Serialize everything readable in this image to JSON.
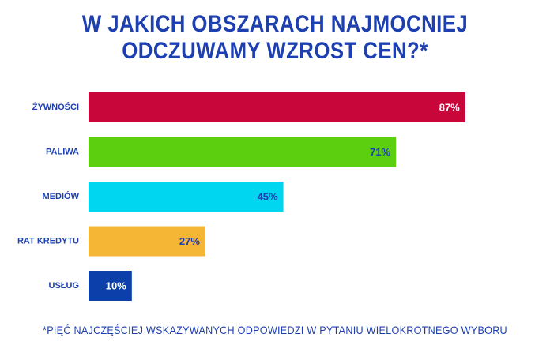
{
  "title_line1": "W JAKICH OBSZARACH NAJMOCNIEJ",
  "title_line2": "ODCZUWAMY WZROST CEN?*",
  "footnote": "*PIĘĆ NAJCZĘŚCIEJ WSKAZYWANYCH ODPOWIEDZI W PYTANIU WIELOKROTNEGO WYBORU",
  "colors": {
    "title": "#1d3fb0",
    "label": "#1d3fb0"
  },
  "chart_data": {
    "type": "bar",
    "orientation": "horizontal",
    "categories": [
      "ŻYWNOŚCI",
      "PALIWA",
      "MEDIÓW",
      "RAT KREDYTU",
      "USŁUG"
    ],
    "values": [
      87,
      71,
      45,
      27,
      10
    ],
    "value_labels": [
      "87%",
      "71%",
      "45%",
      "27%",
      "10%"
    ],
    "bar_colors": [
      "#c8063a",
      "#5ccf0e",
      "#00d6ef",
      "#f5b535",
      "#0d3fab"
    ],
    "value_label_colors": [
      "#ffffff",
      "#1d3fb0",
      "#1d3fb0",
      "#1d3fb0",
      "#ffffff"
    ],
    "xlim": [
      0,
      100
    ],
    "axis_visible": false,
    "grid": false
  }
}
